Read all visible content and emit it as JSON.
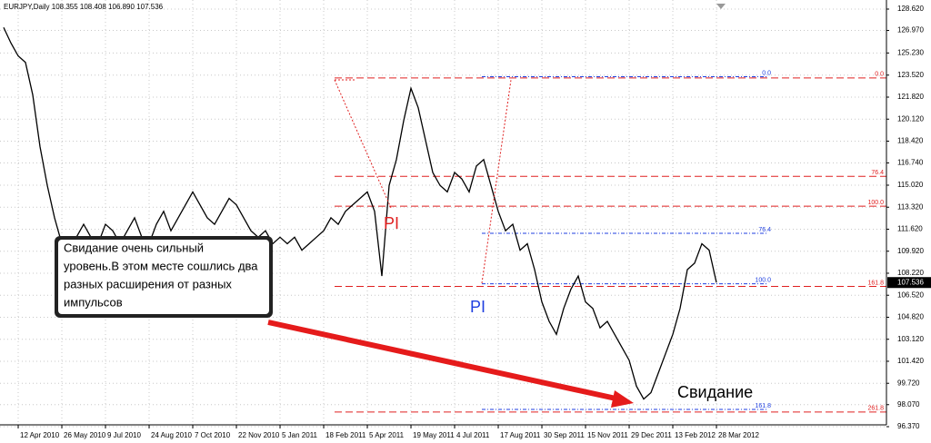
{
  "header": "EURJPY,Daily  108.355 108.408 106.890 107.536",
  "price_box": "107.536",
  "callout": [
    "Свидание очень сильный",
    "уровень.В этом месте сошлись два",
    "разных расширения от разных",
    "импульсов"
  ],
  "labels": {
    "pi_red": "PI",
    "pi_blue": "PI",
    "meeting": "Свидание"
  },
  "chart_data": {
    "type": "line",
    "color": "#000000",
    "grid": true,
    "categories": [
      null,
      null,
      "12 Apr 2010",
      null,
      null,
      null,
      null,
      null,
      "26 May 2010",
      null,
      null,
      null,
      null,
      null,
      "9 Jul 2010",
      null,
      null,
      null,
      null,
      null,
      "24 Aug 2010",
      null,
      null,
      null,
      null,
      null,
      "7 Oct 2010",
      null,
      null,
      null,
      null,
      null,
      "22 Nov 2010",
      null,
      null,
      null,
      null,
      null,
      "5 Jan 2011",
      null,
      null,
      null,
      null,
      null,
      "18 Feb 2011",
      null,
      null,
      null,
      null,
      null,
      "5 Apr 2011",
      null,
      null,
      null,
      null,
      null,
      "19 May 2011",
      null,
      null,
      null,
      null,
      null,
      "4 Jul 2011",
      null,
      null,
      null,
      null,
      null,
      "17 Aug 2011",
      null,
      null,
      null,
      null,
      null,
      "30 Sep 2011",
      null,
      null,
      null,
      null,
      null,
      "15 Nov 2011",
      null,
      null,
      null,
      null,
      null,
      "29 Dec 2011",
      null,
      null,
      null,
      null,
      null,
      "13 Feb 2012",
      null,
      null,
      null,
      null,
      null,
      "28 Mar 2012"
    ],
    "values": [
      127.2,
      126.0,
      125.0,
      124.5,
      122.0,
      118.0,
      115.0,
      112.5,
      110.5,
      110.0,
      111.0,
      112.0,
      111.0,
      110.5,
      112.0,
      111.5,
      110.5,
      111.5,
      112.5,
      111.0,
      110.5,
      112.0,
      113.0,
      111.5,
      112.5,
      113.5,
      114.5,
      113.5,
      112.5,
      112.0,
      113.0,
      114.0,
      113.5,
      112.5,
      111.5,
      111.0,
      111.5,
      110.5,
      111.0,
      110.5,
      111.0,
      110.0,
      110.5,
      111.0,
      111.5,
      112.5,
      112.0,
      113.0,
      113.5,
      114.0,
      114.5,
      113.0,
      108.0,
      115.0,
      117.0,
      120.0,
      122.5,
      121.0,
      118.5,
      116.0,
      115.0,
      114.5,
      116.0,
      115.5,
      114.5,
      116.5,
      117.0,
      115.0,
      113.0,
      111.5,
      112.0,
      110.0,
      110.5,
      108.5,
      106.0,
      104.5,
      103.5,
      105.5,
      107.0,
      108.0,
      106.0,
      105.5,
      104.0,
      104.5,
      103.5,
      102.5,
      101.5,
      99.5,
      98.5,
      99.0,
      100.5,
      102.0,
      103.5,
      105.5,
      108.5,
      109.0,
      110.5,
      110.0,
      107.5
    ],
    "ylim": [
      96.37,
      128.62
    ],
    "yticks": [
      {
        "value": 96.37,
        "label": "96.370"
      },
      {
        "value": 98.07,
        "label": "98.070"
      },
      {
        "value": 99.72,
        "label": "99.720"
      },
      {
        "value": 101.42,
        "label": "101.420"
      },
      {
        "value": 103.12,
        "label": "103.120"
      },
      {
        "value": 104.82,
        "label": "104.820"
      },
      {
        "value": 106.52,
        "label": "106.520"
      },
      {
        "value": 108.22,
        "label": "108.220"
      },
      {
        "value": 109.92,
        "label": "109.920"
      },
      {
        "value": 111.62,
        "label": "111.620"
      },
      {
        "value": 113.32,
        "label": "113.320"
      },
      {
        "value": 115.02,
        "label": "115.020"
      },
      {
        "value": 116.74,
        "label": "116.740"
      },
      {
        "value": 118.42,
        "label": "118.420"
      },
      {
        "value": 120.12,
        "label": "120.120"
      },
      {
        "value": 121.82,
        "label": "121.820"
      },
      {
        "value": 123.52,
        "label": "123.520"
      },
      {
        "value": 125.23,
        "label": "125.230"
      },
      {
        "value": 126.97,
        "label": "126.970"
      },
      {
        "value": 128.62,
        "label": "128.620"
      }
    ],
    "fib_red": [
      {
        "level": 123.3,
        "label": "0.0"
      },
      {
        "level": 115.7,
        "label": "76.4"
      },
      {
        "level": 113.4,
        "label": "100.0"
      },
      {
        "level": 107.2,
        "label": "161.8"
      },
      {
        "level": 97.5,
        "label": "261.8"
      }
    ],
    "fib_blue": [
      {
        "level": 123.4,
        "label": "0.0"
      },
      {
        "level": 111.3,
        "label": "76.4"
      },
      {
        "level": 107.4,
        "label": "100.0"
      },
      {
        "level": 97.7,
        "label": "161.8"
      }
    ]
  }
}
